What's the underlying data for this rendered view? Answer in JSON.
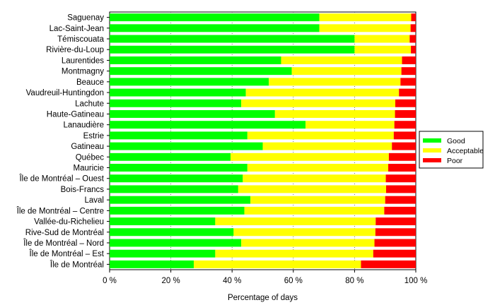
{
  "chart_data": {
    "type": "bar",
    "orientation": "horizontal",
    "stacked": "percent",
    "xlabel": "Percentage of days",
    "ylabel": "",
    "xlim": [
      0,
      100
    ],
    "x_ticks": [
      "0 %",
      "20 %",
      "40 %",
      "60 %",
      "80 %",
      "100 %"
    ],
    "grid": "vertical",
    "legend_position": "right",
    "categories": [
      "Saguenay",
      "Lac-Saint-Jean",
      "Témiscouata",
      "Rivière-du-Loup",
      "Laurentides",
      "Montmagny",
      "Beauce",
      "Vaudreuil-Huntingdon",
      "Lachute",
      "Haute-Gatineau",
      "Lanaudière",
      "Estrie",
      "Gatineau",
      "Québec",
      "Mauricie",
      "Île de Montréal – Ouest",
      "Bois-Francs",
      "Laval",
      "Île de Montréal – Centre",
      "Vallée-du-Richelieu",
      "Rive-Sud de Montréal",
      "Île de Montréal – Nord",
      "Île de Montréal – Est",
      "Île de Montréal"
    ],
    "series": [
      {
        "name": "Good",
        "color": "#00ff00",
        "values": [
          68.5,
          68.5,
          80,
          80,
          56,
          59.5,
          52,
          44.5,
          43,
          54,
          64,
          45,
          50,
          39.5,
          45,
          43.5,
          42,
          46,
          44,
          34.5,
          40.5,
          43,
          34.5,
          27.5
        ]
      },
      {
        "name": "Acceptable",
        "color": "#ffff00",
        "values": [
          30,
          29.8,
          18,
          18.4,
          39.5,
          35.8,
          43,
          50,
          50.3,
          39.2,
          29,
          47.8,
          42.2,
          51.7,
          46,
          46.7,
          48.3,
          44,
          45.7,
          52.4,
          46.3,
          43.5,
          51.6,
          54.6
        ]
      },
      {
        "name": "Poor",
        "color": "#ff0000",
        "values": [
          1.5,
          1.7,
          2,
          1.6,
          4.5,
          4.7,
          5,
          5.5,
          6.7,
          6.8,
          7,
          7.2,
          7.8,
          8.8,
          9,
          9.8,
          9.7,
          10,
          10.3,
          13.1,
          13.2,
          13.5,
          13.9,
          17.9
        ]
      }
    ]
  }
}
